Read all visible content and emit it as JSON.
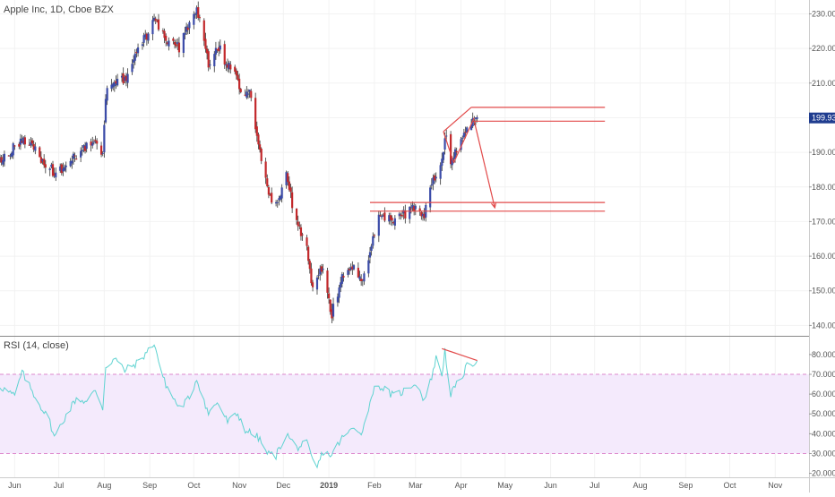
{
  "main_legend": "Apple Inc, 1D, Cboe BZX",
  "rsi_legend": "RSI (14, close)",
  "colors": {
    "up": "#3b4ba8",
    "down": "#c2282b",
    "wick": "#333333",
    "annotation": "#e24a4a",
    "rsi_line": "#5fd3d1",
    "rsi_band": "#f4eafc",
    "rsi_dash": "#dd88cc",
    "grid": "#f2f2f2",
    "price_tag": "#1f3c8f"
  },
  "chart_data": [
    {
      "type": "candlestick",
      "title": "Apple Inc, 1D, Cboe BZX",
      "ylim": [
        137,
        234
      ],
      "xlim": [
        "2018-05-22",
        "2019-11-24"
      ],
      "y_ticks": [
        "140.00",
        "150.00",
        "160.00",
        "170.00",
        "180.00",
        "190.00",
        "200.00",
        "210.00",
        "220.00",
        "230.00"
      ],
      "last_price": "199.93",
      "anchors": [
        [
          "2018-05-22",
          188
        ],
        [
          "2018-06-06",
          193
        ],
        [
          "2018-06-14",
          191
        ],
        [
          "2018-06-28",
          184
        ],
        [
          "2018-07-05",
          186
        ],
        [
          "2018-07-25",
          193
        ],
        [
          "2018-07-31",
          190
        ],
        [
          "2018-08-02",
          207
        ],
        [
          "2018-08-16",
          212
        ],
        [
          "2018-08-31",
          225
        ],
        [
          "2018-09-04",
          228
        ],
        [
          "2018-09-12",
          222
        ],
        [
          "2018-09-21",
          220
        ],
        [
          "2018-10-03",
          232
        ],
        [
          "2018-10-11",
          215
        ],
        [
          "2018-10-17",
          221
        ],
        [
          "2018-10-24",
          215
        ],
        [
          "2018-10-30",
          212
        ],
        [
          "2018-11-02",
          207
        ],
        [
          "2018-11-08",
          208
        ],
        [
          "2018-11-15",
          191
        ],
        [
          "2018-11-21",
          177
        ],
        [
          "2018-11-26",
          174
        ],
        [
          "2018-12-03",
          183
        ],
        [
          "2018-12-10",
          169
        ],
        [
          "2018-12-17",
          163
        ],
        [
          "2018-12-21",
          150
        ],
        [
          "2018-12-28",
          157
        ],
        [
          "2019-01-03",
          143
        ],
        [
          "2019-01-09",
          153
        ],
        [
          "2019-01-18",
          157
        ],
        [
          "2019-01-24",
          153
        ],
        [
          "2019-01-31",
          166
        ],
        [
          "2019-02-04",
          171
        ],
        [
          "2019-02-14",
          170
        ],
        [
          "2019-02-22",
          172
        ],
        [
          "2019-03-01",
          174
        ],
        [
          "2019-03-07",
          172
        ],
        [
          "2019-03-11",
          179
        ],
        [
          "2019-03-19",
          188
        ],
        [
          "2019-03-21",
          195
        ],
        [
          "2019-03-25",
          188
        ],
        [
          "2019-03-29",
          190
        ],
        [
          "2019-04-04",
          196
        ],
        [
          "2019-04-09",
          200
        ],
        [
          "2019-04-12",
          199.93
        ]
      ],
      "annotations": {
        "horizontal_levels": [
          203,
          199,
          175.5,
          173
        ],
        "channel_lines": [
          [
            [
              "2019-03-20",
              196
            ],
            [
              "2019-04-08",
              203
            ]
          ],
          [
            [
              "2019-03-27",
              187
            ],
            [
              "2019-04-10",
              200
            ]
          ],
          [
            [
              "2019-03-20",
              196
            ],
            [
              "2019-03-27",
              187
            ]
          ]
        ],
        "target_arrow": [
          [
            "2019-04-10",
            199
          ],
          [
            "2019-04-24",
            174
          ]
        ]
      }
    },
    {
      "type": "line",
      "title": "RSI (14, close)",
      "ylim": [
        18,
        89
      ],
      "y_ticks": [
        "20.0000",
        "30.0000",
        "40.0000",
        "50.0000",
        "60.0000",
        "70.0000",
        "80.0000"
      ],
      "overbought": 70,
      "oversold": 30,
      "anchors": [
        [
          "2018-05-22",
          64
        ],
        [
          "2018-06-01",
          59
        ],
        [
          "2018-06-06",
          71
        ],
        [
          "2018-06-14",
          60
        ],
        [
          "2018-06-25",
          46
        ],
        [
          "2018-06-28",
          38
        ],
        [
          "2018-07-05",
          48
        ],
        [
          "2018-07-13",
          58
        ],
        [
          "2018-07-20",
          56
        ],
        [
          "2018-07-26",
          62
        ],
        [
          "2018-07-31",
          53
        ],
        [
          "2018-08-02",
          74
        ],
        [
          "2018-08-08",
          78
        ],
        [
          "2018-08-15",
          72
        ],
        [
          "2018-08-24",
          76
        ],
        [
          "2018-08-31",
          82
        ],
        [
          "2018-09-04",
          86
        ],
        [
          "2018-09-10",
          68
        ],
        [
          "2018-09-14",
          62
        ],
        [
          "2018-09-21",
          53
        ],
        [
          "2018-09-28",
          58
        ],
        [
          "2018-10-03",
          68
        ],
        [
          "2018-10-11",
          50
        ],
        [
          "2018-10-17",
          56
        ],
        [
          "2018-10-24",
          46
        ],
        [
          "2018-10-31",
          50
        ],
        [
          "2018-11-05",
          42
        ],
        [
          "2018-11-14",
          38
        ],
        [
          "2018-11-20",
          30
        ],
        [
          "2018-11-26",
          29
        ],
        [
          "2018-12-03",
          40
        ],
        [
          "2018-12-10",
          33
        ],
        [
          "2018-12-17",
          35
        ],
        [
          "2018-12-21",
          26
        ],
        [
          "2018-12-24",
          23
        ],
        [
          "2018-12-28",
          31
        ],
        [
          "2019-01-03",
          29
        ],
        [
          "2019-01-09",
          37
        ],
        [
          "2019-01-18",
          43
        ],
        [
          "2019-01-24",
          41
        ],
        [
          "2019-01-31",
          62
        ],
        [
          "2019-02-05",
          64
        ],
        [
          "2019-02-14",
          59
        ],
        [
          "2019-02-22",
          62
        ],
        [
          "2019-03-01",
          66
        ],
        [
          "2019-03-07",
          57
        ],
        [
          "2019-03-11",
          66
        ],
        [
          "2019-03-15",
          78
        ],
        [
          "2019-03-19",
          70
        ],
        [
          "2019-03-21",
          82
        ],
        [
          "2019-03-25",
          60
        ],
        [
          "2019-04-01",
          68
        ],
        [
          "2019-04-05",
          74
        ],
        [
          "2019-04-12",
          77
        ]
      ],
      "annotations": {
        "divergence_line": [
          [
            "2019-03-19",
            83
          ],
          [
            "2019-04-12",
            77
          ]
        ]
      }
    }
  ],
  "x_ticks": [
    {
      "label": "Jun",
      "date": "2018-06-01"
    },
    {
      "label": "Jul",
      "date": "2018-07-01"
    },
    {
      "label": "Aug",
      "date": "2018-08-01"
    },
    {
      "label": "Sep",
      "date": "2018-09-01"
    },
    {
      "label": "Oct",
      "date": "2018-10-01"
    },
    {
      "label": "Nov",
      "date": "2018-11-01"
    },
    {
      "label": "Dec",
      "date": "2018-12-01"
    },
    {
      "label": "2019",
      "date": "2019-01-01",
      "bold": true
    },
    {
      "label": "Feb",
      "date": "2019-02-01"
    },
    {
      "label": "Mar",
      "date": "2019-03-01"
    },
    {
      "label": "Apr",
      "date": "2019-04-01"
    },
    {
      "label": "May",
      "date": "2019-05-01"
    },
    {
      "label": "Jun",
      "date": "2019-06-01"
    },
    {
      "label": "Jul",
      "date": "2019-07-01"
    },
    {
      "label": "Aug",
      "date": "2019-08-01"
    },
    {
      "label": "Sep",
      "date": "2019-09-01"
    },
    {
      "label": "Oct",
      "date": "2019-10-01"
    },
    {
      "label": "Nov",
      "date": "2019-11-01"
    }
  ]
}
